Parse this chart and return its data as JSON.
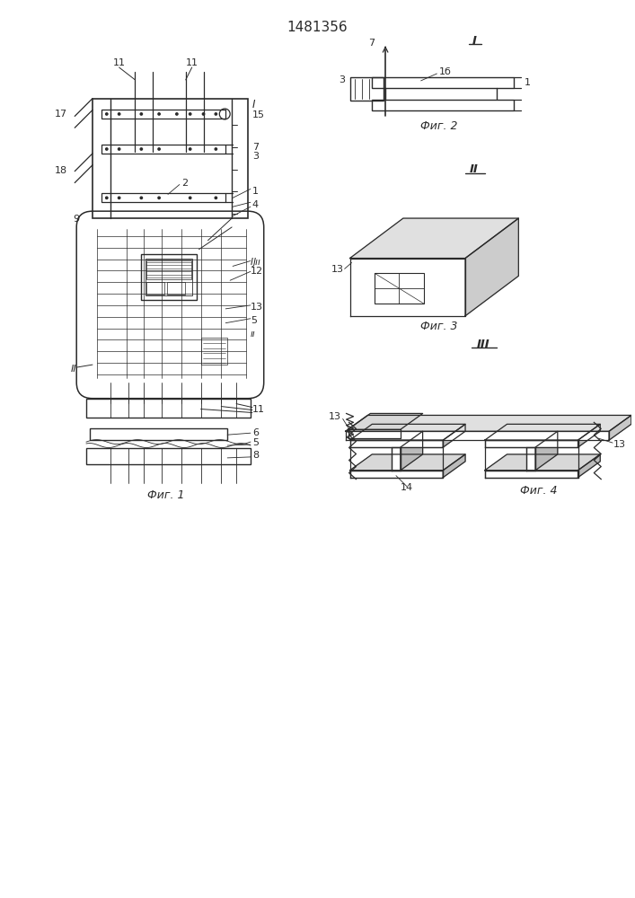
{
  "title": "1481356",
  "bg_color": "#ffffff",
  "line_color": "#2a2a2a",
  "fig1_caption": "Фиг. 1",
  "fig2_caption": "Фиг. 2",
  "fig3_caption": "Фиг. 3",
  "fig4_caption": "Фиг. 4"
}
